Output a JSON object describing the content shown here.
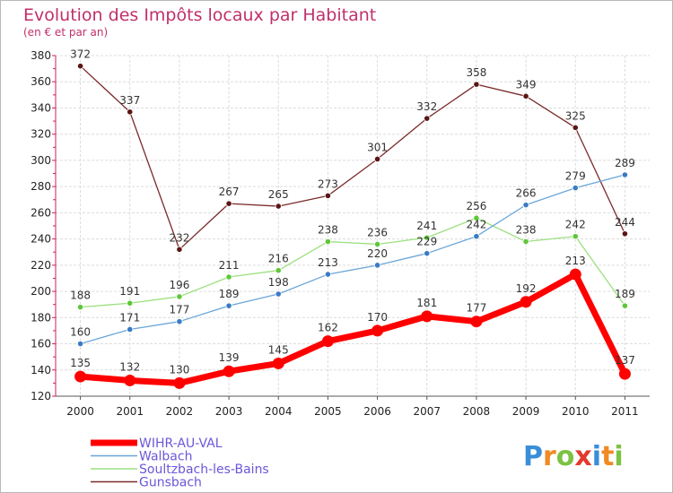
{
  "title": "Evolution des Impôts locaux par Habitant",
  "subtitle": "(en € et par an)",
  "logo": {
    "letters": [
      "P",
      "r",
      "o",
      "x",
      "i",
      "t",
      "i"
    ],
    "colors": [
      "#3a8ed8",
      "#f08a24",
      "#7cc243",
      "#e23b2e",
      "#3a8ed8",
      "#f08a24",
      "#7cc243"
    ]
  },
  "chart_data": {
    "type": "line",
    "title": "Evolution des Impôts locaux par Habitant",
    "subtitle": "(en € et par an)",
    "x": [
      "2000",
      "2001",
      "2002",
      "2003",
      "2004",
      "2005",
      "2006",
      "2007",
      "2008",
      "2009",
      "2010",
      "2011"
    ],
    "ylim": [
      120,
      380
    ],
    "yticks": [
      120,
      140,
      160,
      180,
      200,
      220,
      240,
      260,
      280,
      300,
      320,
      340,
      360,
      380
    ],
    "grid": true,
    "legend": "bottom-left",
    "series": [
      {
        "name": "WIHR-AU-VAL",
        "color": "#ff0000",
        "values": [
          135,
          132,
          130,
          139,
          145,
          162,
          170,
          181,
          177,
          192,
          213,
          137
        ]
      },
      {
        "name": "Walbach",
        "color": "#6aa5d8",
        "marker": "#3a7bc4",
        "values": [
          160,
          171,
          177,
          189,
          198,
          213,
          220,
          229,
          242,
          266,
          279,
          289
        ]
      },
      {
        "name": "Soultzbach-les-Bains",
        "color": "#9be07e",
        "marker": "#5fc63a",
        "values": [
          188,
          191,
          196,
          211,
          216,
          238,
          236,
          241,
          256,
          238,
          242,
          189
        ]
      },
      {
        "name": "Gunsbach",
        "color": "#7a2a2a",
        "marker": "#5a1515",
        "values": [
          372,
          337,
          232,
          267,
          265,
          273,
          301,
          332,
          358,
          349,
          325,
          244
        ]
      }
    ]
  }
}
